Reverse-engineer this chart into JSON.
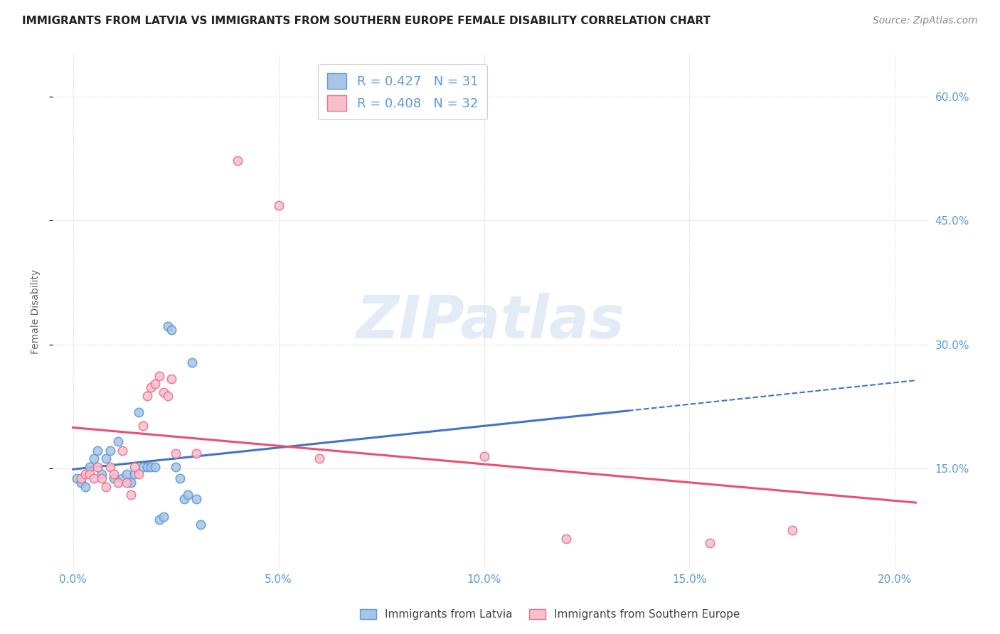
{
  "title": "IMMIGRANTS FROM LATVIA VS IMMIGRANTS FROM SOUTHERN EUROPE FEMALE DISABILITY CORRELATION CHART",
  "source": "Source: ZipAtlas.com",
  "ylabel": "Female Disability",
  "watermark_text": "ZIPatlas",
  "legend": {
    "latvia_R": 0.427,
    "latvia_N": 31,
    "southern_R": 0.408,
    "southern_N": 32
  },
  "latvia_marker_color": "#a8c4e8",
  "latvia_edge_color": "#5b9bd5",
  "southern_marker_color": "#f9c0cc",
  "southern_edge_color": "#e87090",
  "latvia_line_color": "#4472c4",
  "southern_line_color": "#e85070",
  "latvia_scatter_x": [
    0.001,
    0.002,
    0.003,
    0.004,
    0.005,
    0.006,
    0.007,
    0.008,
    0.009,
    0.01,
    0.011,
    0.012,
    0.013,
    0.014,
    0.015,
    0.016,
    0.017,
    0.018,
    0.019,
    0.02,
    0.021,
    0.022,
    0.023,
    0.024,
    0.025,
    0.026,
    0.027,
    0.028,
    0.029,
    0.03,
    0.031
  ],
  "latvia_scatter_y": [
    0.138,
    0.133,
    0.128,
    0.152,
    0.162,
    0.172,
    0.143,
    0.162,
    0.172,
    0.138,
    0.183,
    0.138,
    0.143,
    0.133,
    0.143,
    0.218,
    0.152,
    0.152,
    0.152,
    0.152,
    0.088,
    0.092,
    0.322,
    0.318,
    0.152,
    0.138,
    0.113,
    0.118,
    0.278,
    0.113,
    0.082
  ],
  "southern_scatter_x": [
    0.002,
    0.003,
    0.004,
    0.005,
    0.006,
    0.007,
    0.008,
    0.009,
    0.01,
    0.011,
    0.012,
    0.013,
    0.014,
    0.015,
    0.016,
    0.017,
    0.018,
    0.019,
    0.02,
    0.021,
    0.022,
    0.023,
    0.024,
    0.025,
    0.03,
    0.04,
    0.05,
    0.06,
    0.1,
    0.12,
    0.155,
    0.175
  ],
  "southern_scatter_y": [
    0.138,
    0.143,
    0.143,
    0.138,
    0.152,
    0.138,
    0.128,
    0.152,
    0.143,
    0.133,
    0.172,
    0.133,
    0.118,
    0.152,
    0.143,
    0.202,
    0.238,
    0.248,
    0.252,
    0.262,
    0.242,
    0.238,
    0.258,
    0.168,
    0.168,
    0.522,
    0.468,
    0.162,
    0.165,
    0.065,
    0.06,
    0.075
  ],
  "xlim": [
    -0.005,
    0.208
  ],
  "ylim": [
    0.03,
    0.65
  ],
  "yticks": [
    0.15,
    0.3,
    0.45,
    0.6
  ],
  "xticks": [
    0.0,
    0.05,
    0.1,
    0.15,
    0.2
  ],
  "grid_color": "#dddddd",
  "title_fontsize": 11,
  "source_fontsize": 10,
  "tick_fontsize": 11,
  "ylabel_fontsize": 10,
  "legend_fontsize": 13,
  "watermark_fontsize": 60,
  "watermark_color": "#d0dff0",
  "tick_color": "#5b9bd5"
}
